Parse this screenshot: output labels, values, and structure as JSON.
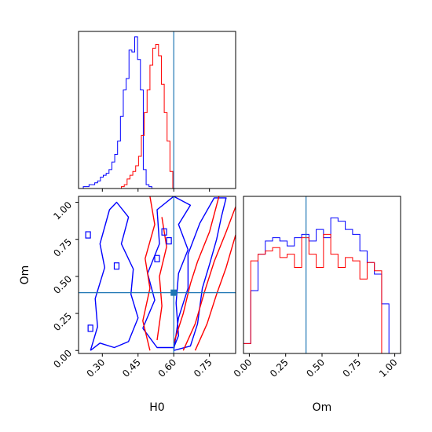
{
  "colors": {
    "series_a": "#0000ff",
    "series_b": "#ff0000",
    "truth": "#1f77b4"
  },
  "chart_data": [
    {
      "type": "histogram",
      "panel": "H0 marginal",
      "xlim": [
        0.2,
        0.86
      ],
      "step": 0.012,
      "series": [
        {
          "color": "#0000ff",
          "edges_start": 0.22,
          "values": [
            1,
            1,
            2,
            2,
            3,
            4,
            6,
            7,
            8,
            10,
            14,
            18,
            25,
            38,
            52,
            58,
            73,
            72,
            80,
            68,
            52,
            10,
            2,
            1
          ]
        },
        {
          "color": "#ff0000",
          "edges_start": 0.38,
          "values": [
            1,
            2,
            5,
            7,
            9,
            12,
            17,
            28,
            40,
            52,
            65,
            74,
            76,
            70,
            55,
            40,
            25,
            9
          ]
        }
      ],
      "truth": 0.6
    },
    {
      "type": "contour",
      "panel": "H0 vs Om",
      "xlim": [
        0.2,
        0.86
      ],
      "ylim": [
        -0.02,
        1.04
      ],
      "xticks": [
        "0.30",
        "0.45",
        "0.60",
        "0.75"
      ],
      "yticks": [
        "0.00",
        "0.25",
        "0.50",
        "0.75",
        "1.00"
      ],
      "xlabel": "H0",
      "ylabel": "Om",
      "truth": {
        "x": 0.6,
        "y": 0.39
      },
      "contours": [
        {
          "color": "#0000ff",
          "points": [
            [
              0.25,
              0.0
            ],
            [
              0.29,
              0.05
            ],
            [
              0.35,
              0.02
            ],
            [
              0.41,
              0.06
            ],
            [
              0.45,
              0.22
            ],
            [
              0.42,
              0.38
            ],
            [
              0.43,
              0.55
            ],
            [
              0.38,
              0.72
            ],
            [
              0.41,
              0.9
            ],
            [
              0.36,
              1.0
            ],
            [
              0.33,
              0.95
            ],
            [
              0.29,
              0.72
            ],
            [
              0.31,
              0.56
            ],
            [
              0.27,
              0.35
            ],
            [
              0.28,
              0.16
            ],
            [
              0.25,
              0.0
            ]
          ]
        },
        {
          "color": "#0000ff",
          "points": [
            [
              0.47,
              0.15
            ],
            [
              0.53,
              0.02
            ],
            [
              0.6,
              0.02
            ],
            [
              0.62,
              0.1
            ],
            [
              0.61,
              0.32
            ],
            [
              0.62,
              0.52
            ],
            [
              0.66,
              0.68
            ],
            [
              0.62,
              0.85
            ],
            [
              0.67,
              0.98
            ],
            [
              0.6,
              1.04
            ],
            [
              0.53,
              0.95
            ],
            [
              0.54,
              0.72
            ],
            [
              0.49,
              0.52
            ],
            [
              0.52,
              0.34
            ],
            [
              0.47,
              0.15
            ]
          ]
        },
        {
          "color": "#0000ff",
          "points": [
            [
              0.6,
              0.0
            ],
            [
              0.67,
              0.03
            ],
            [
              0.7,
              0.18
            ],
            [
              0.72,
              0.42
            ],
            [
              0.75,
              0.58
            ],
            [
              0.78,
              0.75
            ],
            [
              0.8,
              0.9
            ],
            [
              0.82,
              1.03
            ],
            [
              0.77,
              1.03
            ],
            [
              0.71,
              0.86
            ],
            [
              0.66,
              0.65
            ],
            [
              0.66,
              0.42
            ],
            [
              0.62,
              0.22
            ],
            [
              0.6,
              0.0
            ]
          ]
        },
        {
          "color": "#ff0000",
          "points": [
            [
              0.5,
              0.0
            ],
            [
              0.47,
              0.2
            ],
            [
              0.5,
              0.42
            ],
            [
              0.48,
              0.62
            ],
            [
              0.52,
              0.85
            ],
            [
              0.5,
              1.04
            ]
          ]
        },
        {
          "color": "#ff0000",
          "points": [
            [
              0.53,
              0.07
            ],
            [
              0.55,
              0.3
            ],
            [
              0.54,
              0.5
            ],
            [
              0.57,
              0.7
            ],
            [
              0.55,
              0.9
            ]
          ]
        },
        {
          "color": "#ff0000",
          "points": [
            [
              0.6,
              0.05
            ],
            [
              0.64,
              0.25
            ],
            [
              0.67,
              0.45
            ],
            [
              0.7,
              0.6
            ],
            [
              0.75,
              0.8
            ],
            [
              0.79,
              1.04
            ]
          ]
        },
        {
          "color": "#ff0000",
          "points": [
            [
              0.64,
              0.0
            ],
            [
              0.69,
              0.18
            ],
            [
              0.73,
              0.4
            ],
            [
              0.77,
              0.6
            ],
            [
              0.82,
              0.8
            ],
            [
              0.86,
              0.97
            ]
          ]
        },
        {
          "color": "#ff0000",
          "points": [
            [
              0.69,
              0.0
            ],
            [
              0.74,
              0.18
            ],
            [
              0.78,
              0.38
            ],
            [
              0.82,
              0.56
            ],
            [
              0.86,
              0.78
            ]
          ]
        }
      ]
    },
    {
      "type": "histogram",
      "panel": "Om marginal",
      "xlim": [
        -0.04,
        1.04
      ],
      "xticks": [
        "0.00",
        "0.25",
        "0.50",
        "0.75",
        "1.00"
      ],
      "xlabel": "Om",
      "step": 0.05,
      "series": [
        {
          "color": "#0000ff",
          "edges_start": -0.04,
          "values": [
            6,
            38,
            60,
            68,
            70,
            68,
            65,
            70,
            72,
            68,
            75,
            70,
            82,
            80,
            75,
            72,
            62,
            55,
            48,
            30
          ]
        },
        {
          "color": "#ff0000",
          "edges_start": -0.04,
          "values": [
            6,
            56,
            60,
            62,
            64,
            58,
            60,
            52,
            70,
            60,
            52,
            72,
            60,
            52,
            58,
            56,
            45,
            55,
            50,
            0
          ]
        }
      ],
      "truth": 0.39
    }
  ]
}
